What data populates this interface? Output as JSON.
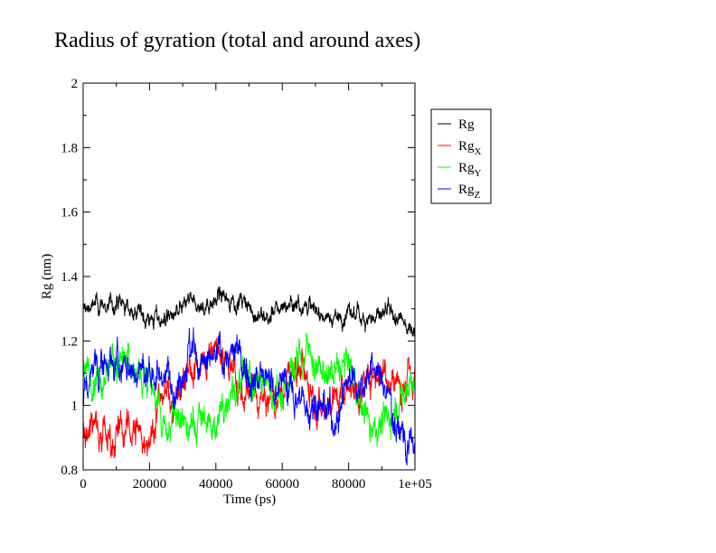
{
  "chart_data": {
    "type": "line",
    "title": "Radius of gyration (total and around axes)",
    "xlabel": "Time (ps)",
    "ylabel": "Rg (nm)",
    "xlim": [
      0,
      100000
    ],
    "ylim": [
      0.8,
      2.0
    ],
    "xticks": [
      0,
      20000,
      40000,
      60000,
      80000,
      100000
    ],
    "xtick_labels": [
      "0",
      "20000",
      "40000",
      "60000",
      "80000",
      "1e+05"
    ],
    "yticks": [
      0.8,
      1.0,
      1.2,
      1.4,
      1.6,
      1.8,
      2.0
    ],
    "ytick_labels": [
      "0.8",
      "1",
      "1.2",
      "1.4",
      "1.6",
      "1.8",
      "2"
    ],
    "legend_placement": "right-outside-top",
    "grid": false,
    "series": [
      {
        "name": "Rg",
        "name_main": "Rg",
        "name_sub": "",
        "color": "#000000",
        "noise": 0.018,
        "x": [
          0,
          4000,
          8000,
          12000,
          16000,
          20000,
          24000,
          28000,
          32000,
          36000,
          40000,
          44000,
          48000,
          52000,
          56000,
          60000,
          64000,
          68000,
          72000,
          76000,
          80000,
          84000,
          88000,
          92000,
          96000,
          100000
        ],
        "y": [
          1.3,
          1.31,
          1.31,
          1.31,
          1.29,
          1.27,
          1.27,
          1.28,
          1.32,
          1.3,
          1.34,
          1.33,
          1.32,
          1.28,
          1.27,
          1.31,
          1.32,
          1.31,
          1.28,
          1.27,
          1.28,
          1.28,
          1.27,
          1.28,
          1.26,
          1.24
        ]
      },
      {
        "name": "RgX",
        "name_main": "Rg",
        "name_sub": "X",
        "color": "#ff0000",
        "noise": 0.035,
        "x": [
          0,
          4000,
          8000,
          12000,
          16000,
          20000,
          24000,
          28000,
          32000,
          36000,
          40000,
          44000,
          48000,
          52000,
          56000,
          60000,
          64000,
          68000,
          72000,
          76000,
          80000,
          84000,
          88000,
          92000,
          96000,
          100000
        ],
        "y": [
          0.92,
          0.96,
          0.9,
          0.92,
          0.93,
          0.88,
          1.05,
          1.02,
          1.1,
          1.14,
          1.17,
          1.12,
          1.03,
          1.02,
          1.0,
          1.05,
          1.12,
          1.08,
          1.0,
          1.03,
          1.08,
          1.04,
          1.12,
          1.1,
          1.06,
          1.08
        ]
      },
      {
        "name": "RgY",
        "name_main": "Rg",
        "name_sub": "Y",
        "color": "#00ff00",
        "noise": 0.035,
        "x": [
          0,
          4000,
          8000,
          12000,
          16000,
          20000,
          24000,
          28000,
          32000,
          36000,
          40000,
          44000,
          48000,
          52000,
          56000,
          60000,
          64000,
          68000,
          72000,
          76000,
          80000,
          84000,
          88000,
          92000,
          96000,
          100000
        ],
        "y": [
          1.12,
          1.1,
          1.12,
          1.14,
          1.1,
          1.1,
          0.92,
          0.96,
          0.92,
          0.96,
          0.93,
          1.06,
          1.06,
          1.08,
          1.05,
          1.05,
          1.14,
          1.18,
          1.08,
          1.1,
          1.13,
          1.0,
          0.94,
          0.96,
          1.02,
          1.08
        ]
      },
      {
        "name": "RgZ",
        "name_main": "Rg",
        "name_sub": "Z",
        "color": "#0000ff",
        "noise": 0.035,
        "x": [
          0,
          4000,
          8000,
          12000,
          16000,
          20000,
          24000,
          28000,
          32000,
          36000,
          40000,
          44000,
          48000,
          52000,
          56000,
          60000,
          64000,
          68000,
          72000,
          76000,
          80000,
          84000,
          88000,
          92000,
          96000,
          100000
        ],
        "y": [
          1.03,
          1.12,
          1.14,
          1.12,
          1.1,
          1.1,
          1.1,
          1.08,
          1.18,
          1.1,
          1.15,
          1.16,
          1.14,
          1.1,
          1.06,
          1.08,
          1.03,
          1.0,
          1.02,
          0.95,
          1.1,
          1.08,
          1.12,
          1.02,
          0.92,
          0.86
        ]
      }
    ]
  }
}
